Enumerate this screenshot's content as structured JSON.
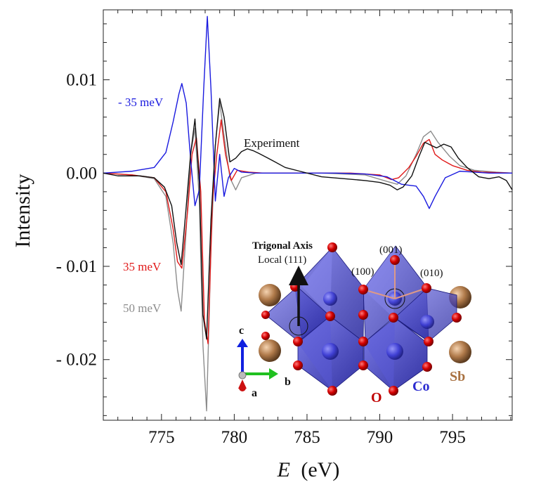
{
  "chart_data": {
    "type": "line",
    "xlabel_symbol": "E",
    "xlabel_unit": "(eV)",
    "ylabel": "Intensity",
    "xlim": [
      771.0,
      799.1
    ],
    "ylim": [
      -0.0265,
      0.0175
    ],
    "xticks": [
      775,
      780,
      785,
      790,
      795
    ],
    "xtick_labels": [
      "775",
      "780",
      "785",
      "790",
      "795"
    ],
    "yticks": [
      0.01,
      0.0,
      -0.01,
      -0.02
    ],
    "ytick_labels": [
      "0.01",
      "0.00",
      "- 0.01",
      "- 0.02"
    ],
    "series": [
      {
        "name": "- 35 meV",
        "color": "#1a1adf",
        "x": [
          771.0,
          773.0,
          774.5,
          775.3,
          775.8,
          776.2,
          776.4,
          776.7,
          777.0,
          777.3,
          777.6,
          777.9,
          778.15,
          778.4,
          778.7,
          779.0,
          779.3,
          779.6,
          780.0,
          780.5,
          781.5,
          783.0,
          785.0,
          787.0,
          789.0,
          790.5,
          791.0,
          791.5,
          792.0,
          792.5,
          793.0,
          793.4,
          793.8,
          794.5,
          795.5,
          796.5,
          797.5,
          799.1
        ],
        "y": [
          0.0,
          0.0002,
          0.0006,
          0.0022,
          0.0055,
          0.0085,
          0.0096,
          0.0075,
          0.0015,
          -0.0035,
          -0.0018,
          0.009,
          0.0168,
          0.009,
          -0.003,
          0.002,
          -0.0025,
          -0.0005,
          0.0005,
          0.0001,
          0.0,
          0.0,
          0.0,
          0.0,
          -0.0001,
          -0.0004,
          -0.0008,
          -0.0012,
          -0.0013,
          -0.0014,
          -0.0025,
          -0.0038,
          -0.0025,
          -0.0005,
          0.0002,
          0.0001,
          0.0,
          0.0
        ]
      },
      {
        "name": "35 meV",
        "color": "#e01818",
        "x": [
          771.0,
          773.0,
          774.5,
          775.3,
          775.8,
          776.1,
          776.4,
          776.8,
          777.1,
          777.4,
          777.7,
          777.95,
          778.2,
          778.5,
          778.8,
          779.1,
          779.4,
          779.8,
          780.2,
          781.0,
          782.0,
          785.0,
          788.0,
          790.0,
          790.8,
          791.3,
          792.0,
          792.5,
          793.0,
          793.4,
          793.8,
          794.3,
          795.0,
          796.0,
          797.0,
          799.1
        ],
        "y": [
          0.0,
          -0.0002,
          -0.0005,
          -0.002,
          -0.006,
          -0.0095,
          -0.0102,
          -0.004,
          0.002,
          0.0038,
          -0.002,
          -0.0158,
          -0.0183,
          -0.003,
          0.002,
          0.0057,
          0.002,
          -0.0008,
          0.0003,
          0.0001,
          0.0,
          0.0,
          0.0,
          -0.0002,
          -0.0007,
          -0.0005,
          0.0006,
          0.0018,
          0.0032,
          0.0036,
          0.002,
          0.0014,
          0.0008,
          0.0003,
          0.0001,
          0.0
        ]
      },
      {
        "name": "50 meV",
        "color": "#8c8c8c",
        "x": [
          771.0,
          773.0,
          774.5,
          775.3,
          775.8,
          776.1,
          776.35,
          776.7,
          777.0,
          777.3,
          777.6,
          777.85,
          778.1,
          778.4,
          778.7,
          779.0,
          779.3,
          779.7,
          780.1,
          780.5,
          781.5,
          783.0,
          786.0,
          789.0,
          790.5,
          791.2,
          791.8,
          792.5,
          793.0,
          793.5,
          794.0,
          794.8,
          795.5,
          796.5,
          798.0,
          799.1
        ],
        "y": [
          0.0,
          -0.0002,
          -0.0006,
          -0.0025,
          -0.0075,
          -0.0125,
          -0.0148,
          -0.006,
          0.002,
          0.0048,
          -0.003,
          -0.0185,
          -0.0255,
          -0.008,
          0.003,
          0.0076,
          0.004,
          -0.0005,
          -0.0018,
          -0.0005,
          0.0,
          0.0,
          0.0,
          -0.0002,
          -0.0009,
          -0.0012,
          -0.0003,
          0.002,
          0.0039,
          0.0045,
          0.0033,
          0.0018,
          0.0008,
          0.0003,
          0.0001,
          0.0
        ]
      },
      {
        "name": "Experiment",
        "color": "#111111",
        "x": [
          771.0,
          772.0,
          773.5,
          774.5,
          775.2,
          775.7,
          776.05,
          776.35,
          776.65,
          777.0,
          777.3,
          777.6,
          777.85,
          778.1,
          778.4,
          778.7,
          779.0,
          779.3,
          779.7,
          780.1,
          780.5,
          780.9,
          781.3,
          781.7,
          782.2,
          782.8,
          783.5,
          784.5,
          786.0,
          787.5,
          789.0,
          790.0,
          790.7,
          791.2,
          791.6,
          792.2,
          792.7,
          793.1,
          793.5,
          793.9,
          794.4,
          794.9,
          795.4,
          796.0,
          796.8,
          797.5,
          798.2,
          798.7,
          799.1
        ],
        "y": [
          0.0,
          -0.0003,
          -0.0003,
          -0.0005,
          -0.0015,
          -0.0035,
          -0.0075,
          -0.0098,
          -0.0045,
          0.002,
          0.0058,
          -0.001,
          -0.0152,
          -0.0178,
          -0.005,
          0.003,
          0.008,
          0.006,
          0.0012,
          0.0016,
          0.0023,
          0.0026,
          0.0024,
          0.0021,
          0.0017,
          0.0012,
          0.0006,
          0.0002,
          -0.0004,
          -0.0006,
          -0.0008,
          -0.001,
          -0.0013,
          -0.0018,
          -0.0015,
          -0.0003,
          0.0018,
          0.0033,
          0.003,
          0.0027,
          0.0031,
          0.0028,
          0.0016,
          0.0006,
          -0.0004,
          -0.0006,
          -0.0004,
          -0.0008,
          -0.0018
        ]
      }
    ],
    "annotations": {
      "minus35_label": "- 35 meV",
      "plus35_label": "35 meV",
      "label_50": "50 meV",
      "experiment_label": "Experiment"
    },
    "grid": false,
    "legend": "none"
  },
  "inset": {
    "trigonal_axis": "Trigonal Axis",
    "local_axis": "Local (111)",
    "dir_001": "(001)",
    "dir_100": "(100)",
    "dir_010": "(010)",
    "axis_c": "c",
    "axis_b": "b",
    "axis_a": "a",
    "atom_O": "O",
    "atom_Co": "Co",
    "atom_Sb": "Sb",
    "colors": {
      "O": "#d40000",
      "Co": "#2b2bd0",
      "Sb": "#b07a4a",
      "octahedron": "#3d3dc0"
    }
  }
}
